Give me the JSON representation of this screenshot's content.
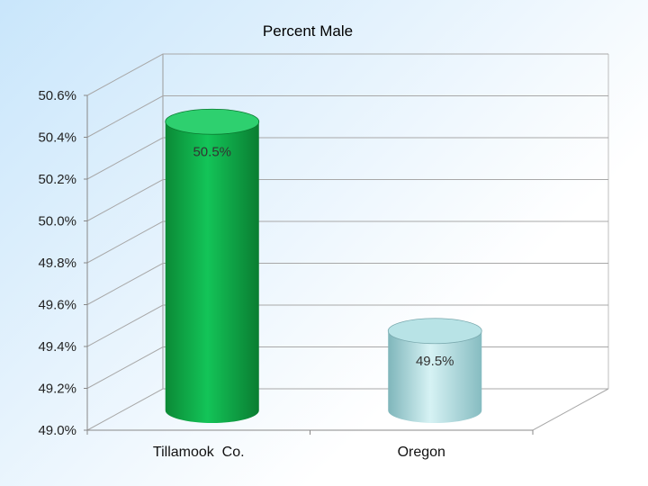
{
  "chart_data": {
    "type": "bar",
    "title": "Percent Male",
    "categories": [
      "Tillamook  Co.",
      "Oregon"
    ],
    "values": [
      50.5,
      49.5
    ],
    "data_labels": [
      "50.5%",
      "49.5%"
    ],
    "ylim": [
      49.0,
      50.6
    ],
    "yticks": [
      49.0,
      49.2,
      49.4,
      49.6,
      49.8,
      50.0,
      50.2,
      50.4,
      50.6
    ],
    "ytick_labels": [
      "49.0%",
      "49.2%",
      "49.4%",
      "49.6%",
      "49.8%",
      "50.0%",
      "50.2%",
      "50.4%",
      "50.6%"
    ],
    "grid": true,
    "style": "3d-cylinder",
    "colors": [
      "#0fae45",
      "#a9dce0"
    ]
  }
}
